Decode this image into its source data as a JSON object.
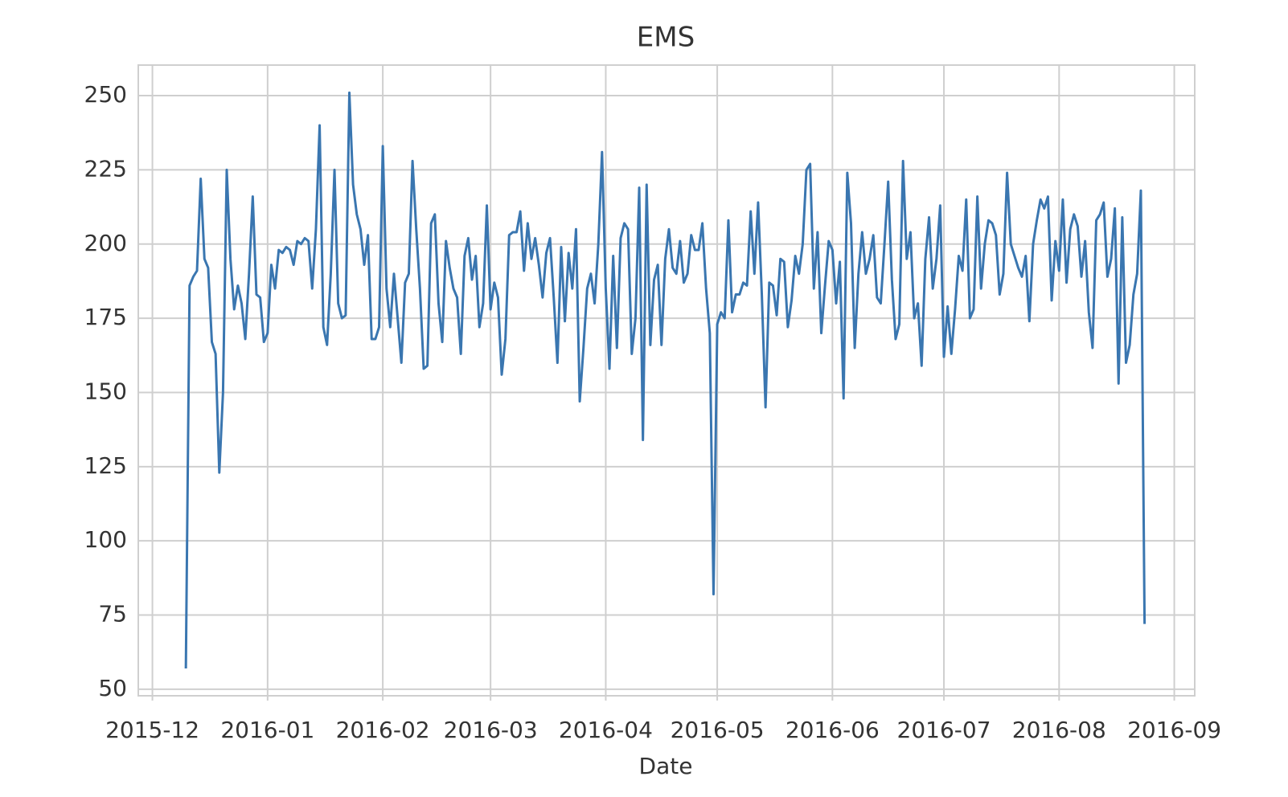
{
  "chart_data": {
    "type": "line",
    "title": "EMS",
    "x_label": "Date",
    "color": "#3a76b0",
    "grid": true,
    "x": [
      9,
      10,
      11,
      12,
      13,
      14,
      15,
      16,
      17,
      18,
      19,
      20,
      21,
      22,
      23,
      24,
      25,
      26,
      27,
      28,
      29,
      30,
      31,
      32,
      33,
      34,
      35,
      36,
      37,
      38,
      39,
      40,
      41,
      42,
      43,
      44,
      45,
      46,
      47,
      48,
      49,
      50,
      51,
      52,
      53,
      54,
      55,
      56,
      57,
      58,
      59,
      60,
      61,
      62,
      63,
      64,
      65,
      66,
      67,
      68,
      69,
      70,
      71,
      72,
      73,
      74,
      75,
      76,
      77,
      78,
      79,
      80,
      81,
      82,
      83,
      84,
      85,
      86,
      87,
      88,
      89,
      90,
      91,
      92,
      93,
      94,
      95,
      96,
      97,
      98,
      99,
      100,
      101,
      102,
      103,
      104,
      105,
      106,
      107,
      108,
      109,
      110,
      111,
      112,
      113,
      114,
      115,
      116,
      117,
      118,
      119,
      120,
      121,
      122,
      123,
      124,
      125,
      126,
      127,
      128,
      129,
      130,
      131,
      132,
      133,
      134,
      135,
      136,
      137,
      138,
      139,
      140,
      141,
      142,
      143,
      144,
      145,
      146,
      147,
      148,
      149,
      150,
      151,
      152,
      153,
      154,
      155,
      156,
      157,
      158,
      159,
      160,
      161,
      162,
      163,
      164,
      165,
      166,
      167,
      168,
      169,
      170,
      171,
      172,
      173,
      174,
      175,
      176,
      177,
      178,
      179,
      180,
      181,
      182,
      183,
      184,
      185,
      186,
      187,
      188,
      189,
      190,
      191,
      192,
      193,
      194,
      195,
      196,
      197,
      198,
      199,
      200,
      201,
      202,
      203,
      204,
      205,
      206,
      207,
      208,
      209,
      210,
      211,
      212,
      213,
      214,
      215,
      216,
      217,
      218,
      219,
      220,
      221,
      222,
      223,
      224,
      225,
      226,
      227,
      228,
      229,
      230,
      231,
      232,
      233,
      234,
      235,
      236,
      237,
      238,
      239,
      240,
      241,
      242,
      243,
      244,
      245,
      246,
      247,
      248,
      249,
      250,
      251,
      252,
      253,
      254,
      255,
      256,
      257,
      258,
      259,
      260,
      261,
      262,
      263,
      264,
      265,
      266,
      267
    ],
    "values": [
      57,
      186,
      189,
      191,
      222,
      195,
      192,
      167,
      163,
      123,
      150,
      225,
      195,
      178,
      186,
      180,
      168,
      190,
      216,
      183,
      182,
      167,
      170,
      193,
      185,
      198,
      197,
      199,
      198,
      193,
      201,
      200,
      202,
      201,
      185,
      205,
      240,
      172,
      166,
      190,
      225,
      180,
      175,
      176,
      251,
      220,
      210,
      205,
      193,
      203,
      168,
      168,
      172,
      233,
      185,
      172,
      190,
      175,
      160,
      187,
      190,
      228,
      205,
      185,
      158,
      159,
      207,
      210,
      180,
      167,
      201,
      192,
      185,
      182,
      163,
      196,
      202,
      188,
      196,
      172,
      180,
      213,
      178,
      187,
      182,
      156,
      168,
      203,
      204,
      204,
      211,
      191,
      207,
      195,
      202,
      193,
      182,
      197,
      202,
      182,
      160,
      199,
      174,
      197,
      185,
      205,
      147,
      165,
      185,
      190,
      180,
      200,
      231,
      185,
      158,
      196,
      165,
      202,
      207,
      205,
      163,
      175,
      219,
      134,
      220,
      166,
      188,
      193,
      166,
      195,
      205,
      192,
      190,
      201,
      187,
      190,
      203,
      198,
      198,
      207,
      185,
      170,
      82,
      173,
      177,
      175,
      208,
      177,
      183,
      183,
      187,
      186,
      211,
      190,
      214,
      183,
      145,
      187,
      186,
      176,
      195,
      194,
      172,
      181,
      196,
      190,
      200,
      225,
      227,
      185,
      204,
      170,
      186,
      201,
      198,
      180,
      194,
      148,
      224,
      207,
      165,
      190,
      204,
      190,
      195,
      203,
      182,
      180,
      200,
      221,
      188,
      168,
      173,
      228,
      195,
      204,
      175,
      180,
      159,
      195,
      209,
      185,
      195,
      213,
      162,
      179,
      163,
      178,
      196,
      191,
      215,
      175,
      178,
      216,
      185,
      200,
      208,
      207,
      203,
      183,
      190,
      224,
      200,
      196,
      192,
      189,
      196,
      174,
      200,
      208,
      215,
      212,
      216,
      181,
      201,
      191,
      215,
      187,
      205,
      210,
      206,
      189,
      201,
      177,
      165,
      208,
      210,
      214,
      189,
      195,
      212,
      153,
      209,
      160,
      166,
      183,
      190,
      218,
      72
    ],
    "xlim": [
      -3.8,
      280.5
    ],
    "xticks": [
      {
        "value": 0,
        "label": "2015-12"
      },
      {
        "value": 31,
        "label": "2016-01"
      },
      {
        "value": 62,
        "label": "2016-02"
      },
      {
        "value": 91,
        "label": "2016-03"
      },
      {
        "value": 122,
        "label": "2016-04"
      },
      {
        "value": 152,
        "label": "2016-05"
      },
      {
        "value": 183,
        "label": "2016-06"
      },
      {
        "value": 213,
        "label": "2016-07"
      },
      {
        "value": 244,
        "label": "2016-08"
      },
      {
        "value": 275,
        "label": "2016-09"
      }
    ],
    "ylim": [
      47.8,
      260.3
    ],
    "yticks": [
      50,
      75,
      100,
      125,
      150,
      175,
      200,
      225,
      250
    ]
  }
}
